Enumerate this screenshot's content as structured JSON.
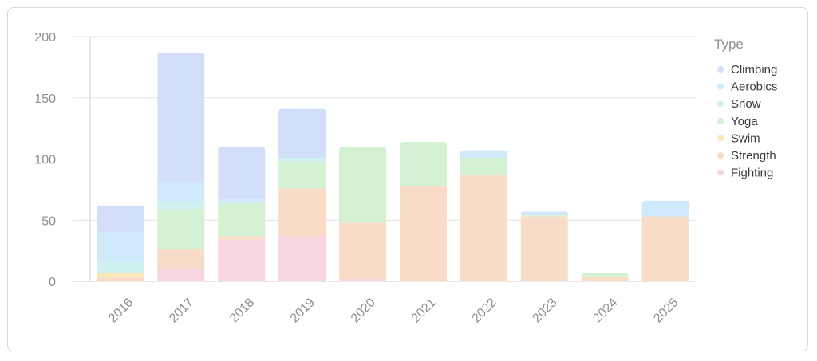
{
  "chart_data": {
    "type": "bar",
    "stacked": true,
    "categories": [
      "2016",
      "2017",
      "2018",
      "2019",
      "2020",
      "2021",
      "2022",
      "2023",
      "2024",
      "2025"
    ],
    "series": [
      {
        "name": "Fighting",
        "color": "#f7d6df",
        "values": [
          0,
          10,
          34,
          37,
          2,
          0,
          0,
          0,
          0,
          0
        ]
      },
      {
        "name": "Strength",
        "color": "#f8dcc8",
        "values": [
          3,
          16,
          3,
          39,
          46,
          78,
          87,
          53,
          4,
          53
        ]
      },
      {
        "name": "Swim",
        "color": "#fbe6b8",
        "values": [
          4,
          0,
          0,
          0,
          0,
          0,
          0,
          0,
          0,
          0
        ]
      },
      {
        "name": "Yoga",
        "color": "#d5f1d3",
        "values": [
          0,
          33,
          27,
          22,
          62,
          36,
          14,
          1,
          3,
          0
        ]
      },
      {
        "name": "Snow",
        "color": "#cff1ef",
        "values": [
          9,
          6,
          0,
          3,
          0,
          0,
          0,
          0,
          0,
          0
        ]
      },
      {
        "name": "Aerobics",
        "color": "#cfe9fb",
        "values": [
          24,
          16,
          3,
          0,
          0,
          0,
          6,
          3,
          0,
          13
        ]
      },
      {
        "name": "Climbing",
        "color": "#d3def9",
        "values": [
          22,
          106,
          43,
          40,
          0,
          0,
          0,
          0,
          0,
          0
        ]
      }
    ],
    "ylim": [
      0,
      200
    ],
    "yticks": [
      0,
      50,
      100,
      150,
      200
    ],
    "grid": true,
    "legend": {
      "title": "Type",
      "position": "right",
      "order": [
        "Climbing",
        "Aerobics",
        "Snow",
        "Yoga",
        "Swim",
        "Strength",
        "Fighting"
      ]
    },
    "title": "",
    "xlabel": "",
    "ylabel": ""
  }
}
